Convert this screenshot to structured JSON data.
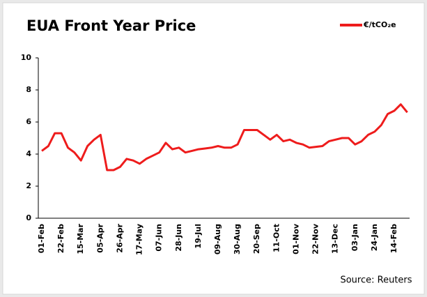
{
  "chart_data": {
    "type": "line",
    "title": "EUA Front Year Price",
    "source": "Source:  Reuters",
    "categories": [
      "01-Feb",
      null,
      null,
      "22-Feb",
      null,
      null,
      "15-Mar",
      null,
      null,
      "05-Apr",
      null,
      null,
      "26-Apr",
      null,
      null,
      "17-May",
      null,
      null,
      "07-Jun",
      null,
      null,
      "28-Jun",
      null,
      null,
      "19-Jul",
      null,
      null,
      "09-Aug",
      null,
      null,
      "30-Aug",
      null,
      null,
      "20-Sep",
      null,
      null,
      "11-Oct",
      null,
      null,
      "01-Nov",
      null,
      null,
      "22-Nov",
      null,
      null,
      "13-Dec",
      null,
      null,
      "03-Jan",
      null,
      null,
      "24-Jan",
      null,
      null,
      "14-Feb",
      null,
      null
    ],
    "series": [
      {
        "name": "€/tCO₂e",
        "color": "#ee1c1c",
        "values": [
          4.2,
          4.5,
          5.3,
          5.3,
          4.4,
          4.1,
          3.6,
          4.5,
          4.9,
          5.2,
          3.0,
          3.0,
          3.2,
          3.7,
          3.6,
          3.4,
          3.7,
          3.9,
          4.1,
          4.7,
          4.3,
          4.4,
          4.1,
          4.2,
          4.3,
          4.35,
          4.4,
          4.5,
          4.4,
          4.4,
          4.6,
          5.5,
          5.5,
          5.5,
          5.2,
          4.9,
          5.2,
          4.8,
          4.9,
          4.7,
          4.6,
          4.4,
          4.45,
          4.5,
          4.8,
          4.9,
          5.0,
          5.0,
          4.6,
          4.8,
          5.2,
          5.4,
          5.8,
          6.5,
          6.7,
          7.1,
          6.6
        ]
      }
    ],
    "ylim": [
      0,
      10
    ],
    "yticks": [
      0,
      2,
      4,
      6,
      8,
      10
    ],
    "grid": false,
    "legend": "top-right"
  }
}
